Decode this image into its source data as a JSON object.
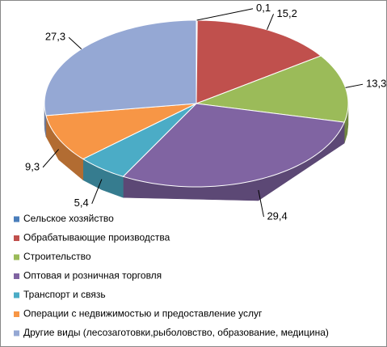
{
  "chart_data": {
    "type": "pie3d",
    "categories": [
      "Сельское хозяйство",
      "Обрабатывающие производства",
      "Строительство",
      "Оптовая и розничная торговля",
      "Транспорт и связь",
      "Операции с недвижимостью и предоставление услуг",
      "Другие виды (лесозаготовки,рыболовство, образование, медицина)"
    ],
    "values": [
      0.1,
      15.2,
      13.3,
      29.4,
      5.4,
      9.3,
      27.3
    ],
    "value_labels": [
      "0,1",
      "15,2",
      "13,3",
      "29,4",
      "5,4",
      "9,3",
      "27,3"
    ],
    "colors": [
      "#4a7ebb",
      "#c0504d",
      "#9bbb59",
      "#8064a2",
      "#4bacc6",
      "#f79646",
      "#95a8d4"
    ],
    "legend": "bottom"
  }
}
